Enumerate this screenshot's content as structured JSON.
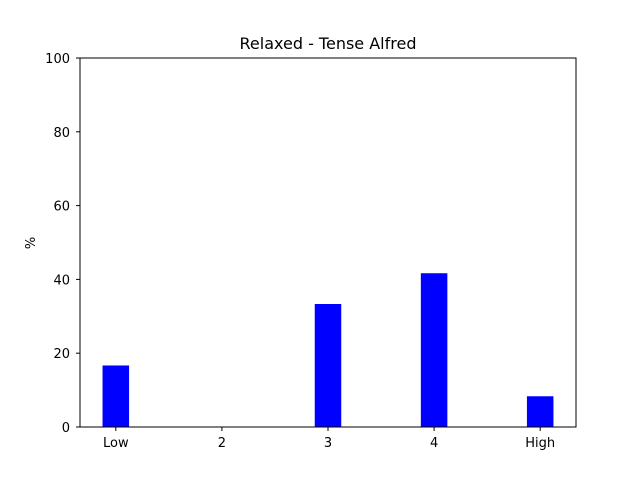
{
  "chart_data": {
    "type": "bar",
    "title": "Relaxed - Tense Alfred",
    "xlabel": "",
    "ylabel": "%",
    "categories": [
      "Low",
      "2",
      "3",
      "4",
      "High"
    ],
    "values": [
      16.67,
      0,
      33.33,
      41.67,
      8.33
    ],
    "ylim": [
      0,
      100
    ],
    "yticks": [
      0,
      20,
      40,
      60,
      80,
      100
    ],
    "grid": false,
    "legend": "none",
    "bar_color": "#0000ff"
  }
}
